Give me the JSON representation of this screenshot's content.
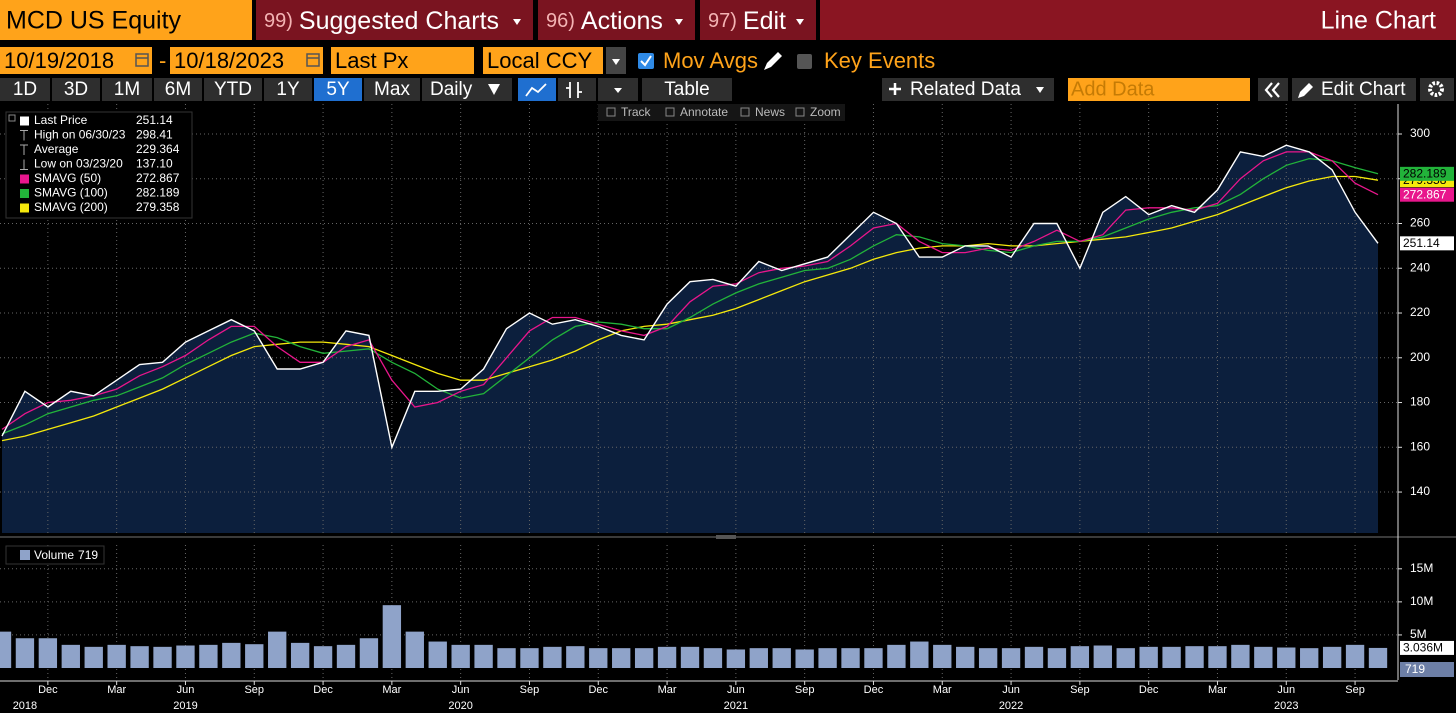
{
  "toolbar": {
    "ticker": "MCD US Equity",
    "menus": [
      {
        "code": "99)",
        "label": "Suggested Charts"
      },
      {
        "code": "96)",
        "label": "Actions"
      },
      {
        "code": "97)",
        "label": "Edit"
      }
    ],
    "chart_type": "Line Chart"
  },
  "controls": {
    "start_date": "10/19/2018",
    "separator": "-",
    "end_date": "10/18/2023",
    "field": "Last Px",
    "currency": "Local CCY",
    "mov_avgs": "Mov Avgs",
    "key_events": "Key Events"
  },
  "ranges": [
    "1D",
    "3D",
    "1M",
    "6M",
    "YTD",
    "1Y",
    "5Y",
    "Max"
  ],
  "selected_range": "5Y",
  "frequency": "Daily",
  "table": "Table",
  "related_data": "Related Data",
  "add_data": "Add Data",
  "edit_chart": "Edit Chart",
  "chart_tools": [
    "Track",
    "Annotate",
    "News",
    "Zoom"
  ],
  "stats": [
    {
      "label": "High on 06/30/23",
      "value": "298.41"
    },
    {
      "label": "Average",
      "value": "229.364"
    },
    {
      "label": "Low on 03/23/20",
      "value": "137.10"
    }
  ],
  "volume_legend_value": "719",
  "chart_data": [
    {
      "type": "line",
      "x": [
        "2018-10",
        "2018-11",
        "2018-12",
        "2019-01",
        "2019-02",
        "2019-03",
        "2019-04",
        "2019-05",
        "2019-06",
        "2019-07",
        "2019-08",
        "2019-09",
        "2019-10",
        "2019-11",
        "2019-12",
        "2020-01",
        "2020-02",
        "2020-03",
        "2020-04",
        "2020-05",
        "2020-06",
        "2020-07",
        "2020-08",
        "2020-09",
        "2020-10",
        "2020-11",
        "2020-12",
        "2021-01",
        "2021-02",
        "2021-03",
        "2021-04",
        "2021-05",
        "2021-06",
        "2021-07",
        "2021-08",
        "2021-09",
        "2021-10",
        "2021-11",
        "2021-12",
        "2022-01",
        "2022-02",
        "2022-03",
        "2022-04",
        "2022-05",
        "2022-06",
        "2022-07",
        "2022-08",
        "2022-09",
        "2022-10",
        "2022-11",
        "2022-12",
        "2023-01",
        "2023-02",
        "2023-03",
        "2023-04",
        "2023-05",
        "2023-06",
        "2023-07",
        "2023-08",
        "2023-09",
        "2023-10"
      ],
      "xlim": [
        "2018-10",
        "2023-10"
      ],
      "xticks": [
        {
          "value": "2018-12",
          "label": "Dec"
        },
        {
          "value": "2019-03",
          "label": "Mar"
        },
        {
          "value": "2019-06",
          "label": "Jun"
        },
        {
          "value": "2019-09",
          "label": "Sep"
        },
        {
          "value": "2019-12",
          "label": "Dec"
        },
        {
          "value": "2020-03",
          "label": "Mar"
        },
        {
          "value": "2020-06",
          "label": "Jun"
        },
        {
          "value": "2020-09",
          "label": "Sep"
        },
        {
          "value": "2020-12",
          "label": "Dec"
        },
        {
          "value": "2021-03",
          "label": "Mar"
        },
        {
          "value": "2021-06",
          "label": "Jun"
        },
        {
          "value": "2021-09",
          "label": "Sep"
        },
        {
          "value": "2021-12",
          "label": "Dec"
        },
        {
          "value": "2022-03",
          "label": "Mar"
        },
        {
          "value": "2022-06",
          "label": "Jun"
        },
        {
          "value": "2022-09",
          "label": "Sep"
        },
        {
          "value": "2022-12",
          "label": "Dec"
        },
        {
          "value": "2023-03",
          "label": "Mar"
        },
        {
          "value": "2023-06",
          "label": "Jun"
        },
        {
          "value": "2023-09",
          "label": "Sep"
        }
      ],
      "ylim": [
        121.7,
        313.4
      ],
      "yticks": [
        140,
        160,
        180,
        200,
        220,
        240,
        260,
        280,
        300
      ],
      "grid": true,
      "area_color": "#0c1f3d",
      "series": [
        {
          "name": "Last Price",
          "color": "#ffffff",
          "values": [
            165,
            185,
            178,
            185,
            183,
            190,
            197,
            198,
            207,
            212,
            217,
            212,
            195,
            195,
            198,
            212,
            210,
            160,
            185,
            185,
            186,
            195,
            213,
            220,
            215,
            217,
            214,
            210,
            208,
            224,
            234,
            235,
            232,
            243,
            239,
            242,
            245,
            255,
            265,
            260,
            245,
            245,
            250,
            250,
            245,
            260,
            260,
            240,
            265,
            272,
            264,
            268,
            265,
            275,
            292,
            290,
            295,
            292,
            284,
            265,
            251.14
          ]
        },
        {
          "name": "SMAVG (50)",
          "color": "#e8168c",
          "values": [
            168,
            175,
            180,
            181,
            183,
            186,
            192,
            196,
            201,
            208,
            214,
            214,
            205,
            198,
            198,
            205,
            208,
            190,
            178,
            180,
            185,
            188,
            200,
            212,
            218,
            218,
            215,
            212,
            210,
            214,
            225,
            232,
            233,
            238,
            240,
            241,
            243,
            250,
            258,
            260,
            252,
            247,
            247,
            249,
            248,
            252,
            257,
            252,
            255,
            266,
            267,
            267,
            266,
            269,
            280,
            288,
            292,
            292,
            288,
            278,
            272.867
          ]
        },
        {
          "name": "SMAVG (100)",
          "color": "#22b33a",
          "values": [
            166,
            170,
            175,
            178,
            181,
            183,
            187,
            191,
            197,
            202,
            207,
            211,
            209,
            205,
            202,
            203,
            204,
            198,
            193,
            186,
            182,
            184,
            192,
            200,
            208,
            214,
            216,
            215,
            213,
            213,
            218,
            224,
            229,
            233,
            236,
            239,
            240,
            244,
            250,
            255,
            254,
            251,
            250,
            248,
            247,
            250,
            252,
            252,
            254,
            258,
            262,
            265,
            267,
            268,
            273,
            280,
            286,
            289,
            288,
            285,
            282.189
          ]
        },
        {
          "name": "SMAVG (200)",
          "color": "#f5e90c",
          "values": [
            163,
            165,
            168,
            171,
            174,
            178,
            182,
            186,
            191,
            196,
            201,
            205,
            206,
            207,
            207,
            206,
            205,
            201,
            197,
            193,
            190,
            190,
            193,
            196,
            199,
            203,
            208,
            212,
            214,
            215,
            217,
            219,
            222,
            226,
            230,
            234,
            237,
            240,
            244,
            247,
            249,
            250,
            250,
            251,
            250,
            250,
            251,
            252,
            253,
            254,
            256,
            258,
            261,
            264,
            268,
            272,
            276,
            279,
            281,
            281,
            279.358
          ]
        }
      ]
    },
    {
      "type": "bar",
      "x": [
        "2018-10",
        "2018-11",
        "2018-12",
        "2019-01",
        "2019-02",
        "2019-03",
        "2019-04",
        "2019-05",
        "2019-06",
        "2019-07",
        "2019-08",
        "2019-09",
        "2019-10",
        "2019-11",
        "2019-12",
        "2020-01",
        "2020-02",
        "2020-03",
        "2020-04",
        "2020-05",
        "2020-06",
        "2020-07",
        "2020-08",
        "2020-09",
        "2020-10",
        "2020-11",
        "2020-12",
        "2021-01",
        "2021-02",
        "2021-03",
        "2021-04",
        "2021-05",
        "2021-06",
        "2021-07",
        "2021-08",
        "2021-09",
        "2021-10",
        "2021-11",
        "2021-12",
        "2022-01",
        "2022-02",
        "2022-03",
        "2022-04",
        "2022-05",
        "2022-06",
        "2022-07",
        "2022-08",
        "2022-09",
        "2022-10",
        "2022-11",
        "2022-12",
        "2023-01",
        "2023-02",
        "2023-03",
        "2023-04",
        "2023-05",
        "2023-06",
        "2023-07",
        "2023-08",
        "2023-09",
        "2023-10"
      ],
      "xlim": [
        "2018-10",
        "2023-10"
      ],
      "xticks": [
        {
          "value": "2018-12",
          "label": "Dec"
        },
        {
          "value": "2019-03",
          "label": "Mar"
        },
        {
          "value": "2019-06",
          "label": "Jun"
        },
        {
          "value": "2019-09",
          "label": "Sep"
        },
        {
          "value": "2019-12",
          "label": "Dec"
        },
        {
          "value": "2020-03",
          "label": "Mar"
        },
        {
          "value": "2020-06",
          "label": "Jun"
        },
        {
          "value": "2020-09",
          "label": "Sep"
        },
        {
          "value": "2020-12",
          "label": "Dec"
        },
        {
          "value": "2021-03",
          "label": "Mar"
        },
        {
          "value": "2021-06",
          "label": "Jun"
        },
        {
          "value": "2021-09",
          "label": "Sep"
        },
        {
          "value": "2021-12",
          "label": "Dec"
        },
        {
          "value": "2022-03",
          "label": "Mar"
        },
        {
          "value": "2022-06",
          "label": "Jun"
        },
        {
          "value": "2022-09",
          "label": "Sep"
        },
        {
          "value": "2022-12",
          "label": "Dec"
        },
        {
          "value": "2023-03",
          "label": "Mar"
        },
        {
          "value": "2023-06",
          "label": "Jun"
        },
        {
          "value": "2023-09",
          "label": "Sep"
        }
      ],
      "year_labels": [
        {
          "value": "2018-11",
          "label": "2018"
        },
        {
          "value": "2019-06",
          "label": "2019"
        },
        {
          "value": "2020-06",
          "label": "2020"
        },
        {
          "value": "2021-06",
          "label": "2021"
        },
        {
          "value": "2022-06",
          "label": "2022"
        },
        {
          "value": "2023-06",
          "label": "2023"
        }
      ],
      "ylim": [
        0,
        18600000
      ],
      "yticks": [
        {
          "value": 5000000,
          "label": "5M"
        },
        {
          "value": 10000000,
          "label": "10M"
        },
        {
          "value": 15000000,
          "label": "15M"
        }
      ],
      "grid": true,
      "series": [
        {
          "name": "Volume",
          "color": "#8fa3c9",
          "values": [
            5500000,
            4500000,
            4500000,
            3500000,
            3200000,
            3500000,
            3300000,
            3200000,
            3400000,
            3500000,
            3800000,
            3600000,
            5500000,
            3800000,
            3300000,
            3500000,
            4500000,
            9500000,
            5500000,
            4000000,
            3500000,
            3500000,
            3000000,
            3000000,
            3200000,
            3300000,
            3000000,
            3000000,
            3000000,
            3200000,
            3200000,
            3000000,
            2800000,
            3000000,
            3000000,
            2800000,
            3000000,
            3000000,
            3000000,
            3500000,
            4000000,
            3500000,
            3200000,
            3000000,
            3000000,
            3200000,
            3000000,
            3300000,
            3400000,
            3000000,
            3200000,
            3200000,
            3300000,
            3300000,
            3500000,
            3200000,
            3100000,
            3000000,
            3200000,
            3500000,
            3036000
          ],
          "value_labels": [
            null,
            null,
            null,
            null,
            null,
            null,
            null,
            null,
            null,
            null,
            null,
            null,
            null,
            null,
            null,
            null,
            null,
            null,
            null,
            null,
            null,
            null,
            null,
            null,
            null,
            null,
            null,
            null,
            null,
            null,
            null,
            null,
            null,
            null,
            null,
            null,
            null,
            null,
            null,
            null,
            null,
            null,
            null,
            null,
            null,
            null,
            null,
            null,
            null,
            null,
            null,
            null,
            null,
            null,
            null,
            null,
            null,
            null,
            null,
            null,
            "3.036M"
          ]
        }
      ]
    }
  ]
}
